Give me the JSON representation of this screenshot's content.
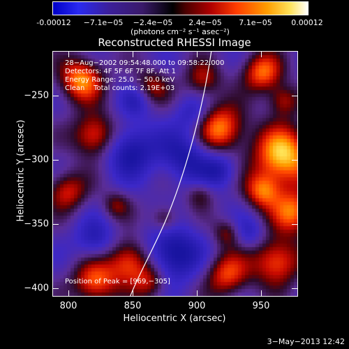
{
  "colorbar": {
    "ticks": [
      "-0.00012",
      "−7.1e−05",
      "−2.4e−05",
      "2.4e−05",
      "7.1e−05",
      "0.00012"
    ],
    "units": "(photons cm⁻² s⁻¹ asec⁻²)"
  },
  "title": "Reconstructed RHESSI Image",
  "info": {
    "line1": "28−Aug−2002 09:54:48.000 to 09:58:22.000",
    "line2": "Detectors: 4F 5F 6F 7F 8F, Att 1",
    "line3": "Energy Range: 25.0 − 50.0 keV",
    "line4": "Clean    Total counts: 2.19E+03",
    "peak": "Position of Peak = [969,−305]"
  },
  "axes": {
    "x_title": "Heliocentric X (arcsec)",
    "y_title": "Heliocentric Y (arcsec)",
    "x_ticks": [
      "800",
      "850",
      "900",
      "950"
    ],
    "y_ticks": [
      "−250",
      "−300",
      "−350",
      "−400"
    ],
    "x_values": [
      800,
      850,
      900,
      950
    ],
    "y_values": [
      -250,
      -300,
      -350,
      -400
    ],
    "xlim": [
      788,
      978
    ],
    "ylim": [
      -405,
      -215
    ]
  },
  "footer": {
    "date": "3−May−2013 12:42"
  }
}
